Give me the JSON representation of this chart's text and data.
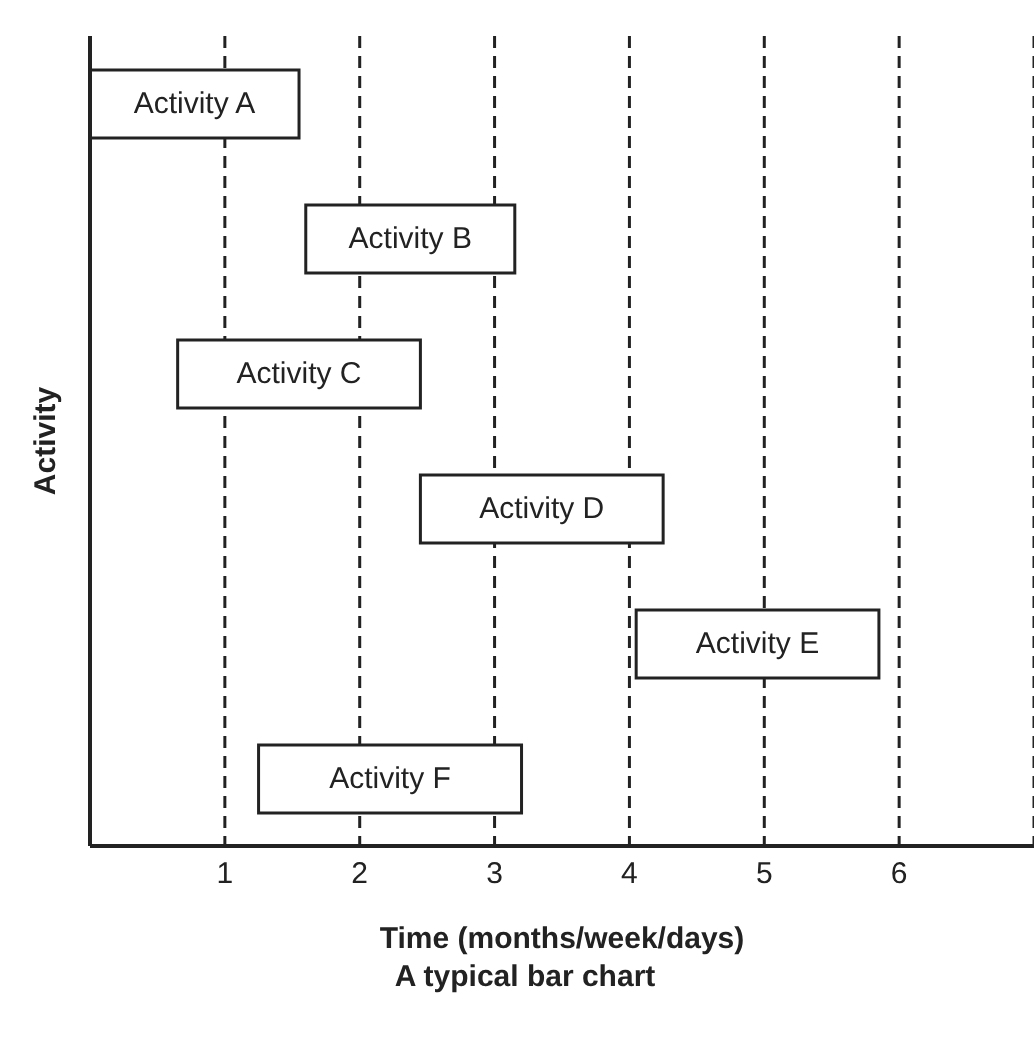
{
  "chart_data": {
    "type": "bar",
    "orientation": "horizontal",
    "title": "A typical bar chart",
    "xlabel": "Time (months/week/days)",
    "ylabel": "Activity",
    "categories": [
      "Activity A",
      "Activity B",
      "Activity C",
      "Activity D",
      "Activity E",
      "Activity F"
    ],
    "base": [
      0,
      1.6,
      0.65,
      2.45,
      4.05,
      1.25
    ],
    "values": [
      1.55,
      1.55,
      1.8,
      1.8,
      1.8,
      1.95
    ],
    "color": "#ffffff",
    "xlim": [
      0,
      7
    ],
    "xticks": [
      1,
      2,
      3,
      4,
      5,
      6
    ],
    "grid": "x",
    "tick_labels": "x"
  }
}
